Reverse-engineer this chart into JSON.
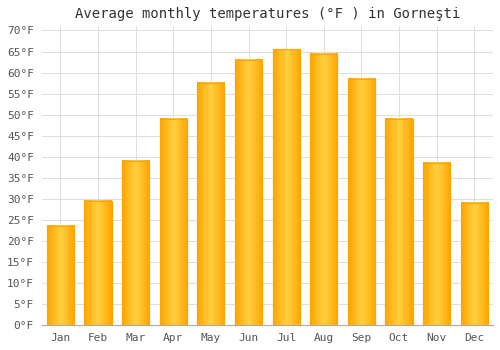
{
  "title": "Average monthly temperatures (°F ) in Gorneşti",
  "months": [
    "Jan",
    "Feb",
    "Mar",
    "Apr",
    "May",
    "Jun",
    "Jul",
    "Aug",
    "Sep",
    "Oct",
    "Nov",
    "Dec"
  ],
  "values": [
    23.5,
    29.5,
    39.0,
    49.0,
    57.5,
    63.0,
    65.5,
    64.5,
    58.5,
    49.0,
    38.5,
    29.0
  ],
  "bar_color_center": "#FFD040",
  "bar_color_edge": "#FFA500",
  "background_color": "#FFFFFF",
  "grid_color": "#DDDDDD",
  "ylim": [
    0,
    71
  ],
  "yticks": [
    0,
    5,
    10,
    15,
    20,
    25,
    30,
    35,
    40,
    45,
    50,
    55,
    60,
    65,
    70
  ],
  "title_fontsize": 10,
  "tick_fontsize": 8,
  "font_family": "monospace"
}
